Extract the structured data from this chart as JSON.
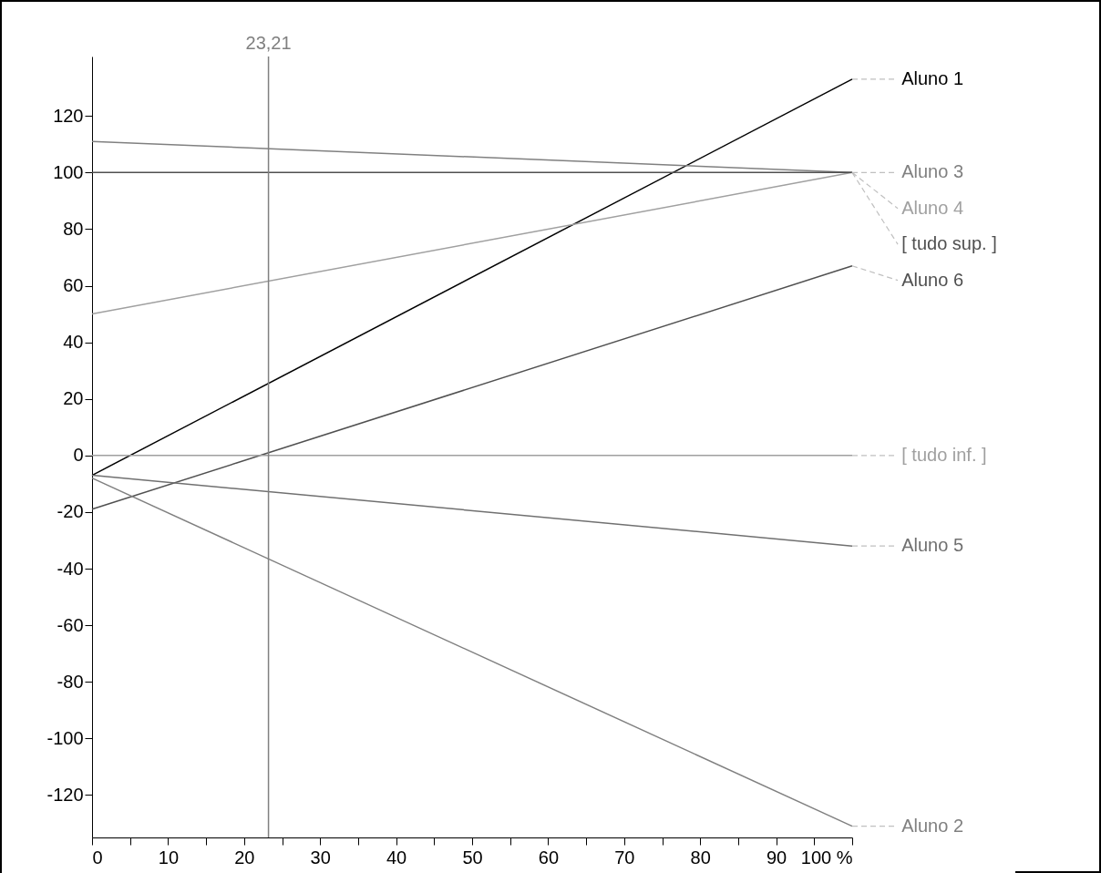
{
  "chart_data": {
    "type": "line",
    "x": [
      0,
      100
    ],
    "series": [
      {
        "name": "Aluno 1",
        "color": "#000000",
        "values": [
          -7,
          133
        ]
      },
      {
        "name": "Aluno 3",
        "color": "#808080",
        "values": [
          111,
          100
        ]
      },
      {
        "name": "Aluno 4",
        "color": "#a0a0a0",
        "values": [
          50,
          100
        ]
      },
      {
        "name": "[ tudo sup. ]",
        "color": "#505050",
        "values": [
          100,
          100
        ]
      },
      {
        "name": "Aluno 6",
        "color": "#505050",
        "values": [
          -19,
          67
        ]
      },
      {
        "name": "[ tudo inf. ]",
        "color": "#a0a0a0",
        "values": [
          0,
          0
        ]
      },
      {
        "name": "Aluno 5",
        "color": "#707070",
        "values": [
          -7,
          -32
        ]
      },
      {
        "name": "Aluno 2",
        "color": "#808080",
        "values": [
          -8,
          -131
        ]
      }
    ],
    "xlim": [
      0,
      100
    ],
    "xticks": [
      0,
      {
        "value": 5,
        "label": null
      },
      10,
      {
        "value": 15,
        "label": null
      },
      20,
      {
        "value": 25,
        "label": null
      },
      30,
      {
        "value": 35,
        "label": null
      },
      40,
      {
        "value": 45,
        "label": null
      },
      50,
      {
        "value": 55,
        "label": null
      },
      60,
      {
        "value": 65,
        "label": null
      },
      70,
      {
        "value": 75,
        "label": null
      },
      80,
      {
        "value": 85,
        "label": null
      },
      90,
      {
        "value": 95,
        "label": null
      },
      {
        "value": 100,
        "label": "100 %"
      }
    ],
    "ylim": [
      -135,
      141
    ],
    "yticks": [
      -120,
      -100,
      -80,
      -60,
      -40,
      -20,
      0,
      20,
      40,
      60,
      80,
      100,
      120
    ],
    "ref_lines": [
      {
        "axis": "x",
        "value": 23.21,
        "label": "23,21",
        "color": "#808080"
      }
    ],
    "grid": false,
    "legend": false
  }
}
